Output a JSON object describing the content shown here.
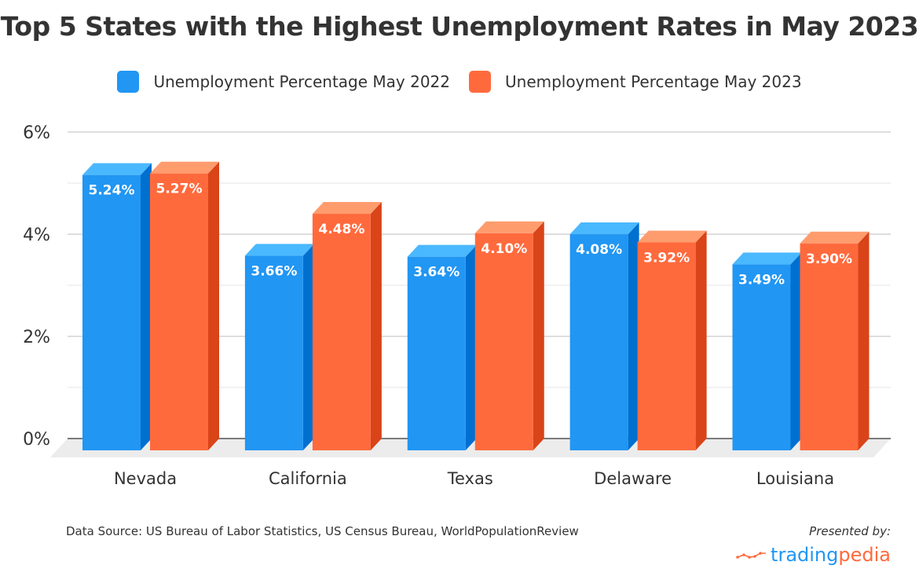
{
  "chart_data": {
    "type": "bar",
    "title": "Top 5 States with the Highest Unemployment Rates in May 2023",
    "categories": [
      "Nevada",
      "California",
      "Texas",
      "Delaware",
      "Louisiana"
    ],
    "series": [
      {
        "name": "Unemployment Percentage May 2022",
        "color": "#2196f3",
        "values": [
          5.24,
          3.66,
          3.64,
          4.08,
          3.49
        ],
        "labels": [
          "5.24%",
          "3.66%",
          "3.64%",
          "4.08%",
          "3.49%"
        ]
      },
      {
        "name": "Unemployment Percentage May 2023",
        "color": "#ff6a3d",
        "values": [
          5.27,
          4.48,
          4.1,
          3.92,
          3.9
        ],
        "labels": [
          "5.27%",
          "4.48%",
          "4.10%",
          "3.92%",
          "3.90%"
        ]
      }
    ],
    "yticks": [
      "0%",
      "2%",
      "4%",
      "6%"
    ],
    "ytick_values": [
      0,
      2,
      4,
      6
    ],
    "ylim": [
      0,
      6
    ],
    "xlabel": "",
    "ylabel": "",
    "grid": true,
    "legend_position": "top-center"
  },
  "footer": {
    "source": "Data Source: US Bureau of Labor Statistics, US Census Bureau, WorldPopulationReview",
    "presented_by": "Presented by:",
    "brand_part1": "trading",
    "brand_part2": "pedia"
  }
}
